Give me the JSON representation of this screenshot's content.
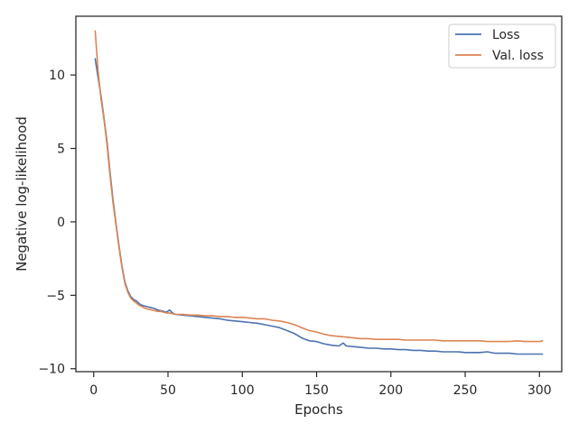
{
  "chart_data": {
    "type": "line",
    "title": "",
    "xlabel": "Epochs",
    "ylabel": "Negative log-likelihood",
    "xlim": [
      -12,
      315
    ],
    "ylim": [
      -10.2,
      14.0
    ],
    "x_ticks": [
      0,
      50,
      100,
      150,
      200,
      250,
      300
    ],
    "y_ticks": [
      -10,
      -5,
      0,
      5,
      10
    ],
    "grid": false,
    "legend_position": "top-right",
    "series": [
      {
        "name": "Loss",
        "color": "#4c72b0",
        "x": [
          1,
          3,
          5,
          7,
          9,
          11,
          13,
          15,
          17,
          19,
          21,
          23,
          25,
          27,
          29,
          31,
          33,
          35,
          37,
          39,
          41,
          43,
          45,
          47,
          49,
          51,
          53,
          55,
          60,
          65,
          70,
          75,
          80,
          85,
          90,
          95,
          100,
          105,
          110,
          115,
          120,
          125,
          130,
          135,
          140,
          145,
          150,
          155,
          160,
          165,
          168,
          170,
          175,
          180,
          185,
          190,
          195,
          200,
          205,
          210,
          215,
          220,
          225,
          230,
          235,
          240,
          245,
          250,
          255,
          260,
          265,
          270,
          275,
          280,
          285,
          290,
          295,
          300,
          302
        ],
        "y": [
          11.1,
          9.8,
          8.5,
          7.0,
          5.4,
          3.4,
          1.5,
          -0.1,
          -1.6,
          -3.0,
          -4.1,
          -4.7,
          -5.1,
          -5.3,
          -5.4,
          -5.6,
          -5.7,
          -5.75,
          -5.8,
          -5.85,
          -5.9,
          -6.0,
          -6.05,
          -6.1,
          -6.15,
          -6.0,
          -6.2,
          -6.3,
          -6.35,
          -6.4,
          -6.45,
          -6.5,
          -6.55,
          -6.6,
          -6.7,
          -6.75,
          -6.8,
          -6.85,
          -6.9,
          -7.0,
          -7.1,
          -7.2,
          -7.4,
          -7.6,
          -7.9,
          -8.1,
          -8.15,
          -8.3,
          -8.4,
          -8.45,
          -8.25,
          -8.45,
          -8.5,
          -8.55,
          -8.6,
          -8.6,
          -8.65,
          -8.65,
          -8.7,
          -8.7,
          -8.75,
          -8.75,
          -8.8,
          -8.8,
          -8.85,
          -8.85,
          -8.85,
          -8.9,
          -8.9,
          -8.9,
          -8.85,
          -8.95,
          -8.95,
          -8.95,
          -9.0,
          -9.0,
          -9.0,
          -9.0,
          -9.0
        ]
      },
      {
        "name": "Val. loss",
        "color": "#dd8452",
        "x": [
          1,
          3,
          5,
          7,
          9,
          11,
          13,
          15,
          17,
          19,
          21,
          23,
          25,
          27,
          29,
          31,
          33,
          35,
          37,
          39,
          41,
          43,
          45,
          47,
          49,
          51,
          53,
          55,
          60,
          65,
          70,
          75,
          80,
          85,
          90,
          95,
          100,
          105,
          110,
          115,
          120,
          125,
          130,
          135,
          140,
          145,
          150,
          155,
          160,
          165,
          170,
          175,
          180,
          185,
          190,
          195,
          200,
          205,
          210,
          215,
          220,
          225,
          230,
          235,
          240,
          245,
          250,
          255,
          260,
          265,
          270,
          275,
          280,
          285,
          290,
          295,
          300,
          302
        ],
        "y": [
          13.0,
          10.2,
          8.3,
          6.9,
          5.2,
          3.2,
          1.3,
          -0.2,
          -1.7,
          -3.1,
          -4.2,
          -4.8,
          -5.2,
          -5.4,
          -5.55,
          -5.7,
          -5.8,
          -5.9,
          -5.95,
          -6.0,
          -6.05,
          -6.1,
          -6.1,
          -6.15,
          -6.2,
          -6.2,
          -6.25,
          -6.3,
          -6.3,
          -6.35,
          -6.35,
          -6.4,
          -6.4,
          -6.45,
          -6.45,
          -6.5,
          -6.5,
          -6.55,
          -6.6,
          -6.6,
          -6.7,
          -6.75,
          -6.85,
          -7.0,
          -7.2,
          -7.4,
          -7.5,
          -7.65,
          -7.75,
          -7.8,
          -7.85,
          -7.9,
          -7.95,
          -7.95,
          -8.0,
          -8.0,
          -8.0,
          -8.0,
          -8.05,
          -8.05,
          -8.05,
          -8.05,
          -8.05,
          -8.1,
          -8.1,
          -8.1,
          -8.1,
          -8.1,
          -8.1,
          -8.15,
          -8.15,
          -8.15,
          -8.15,
          -8.1,
          -8.15,
          -8.15,
          -8.15,
          -8.1
        ]
      }
    ]
  }
}
